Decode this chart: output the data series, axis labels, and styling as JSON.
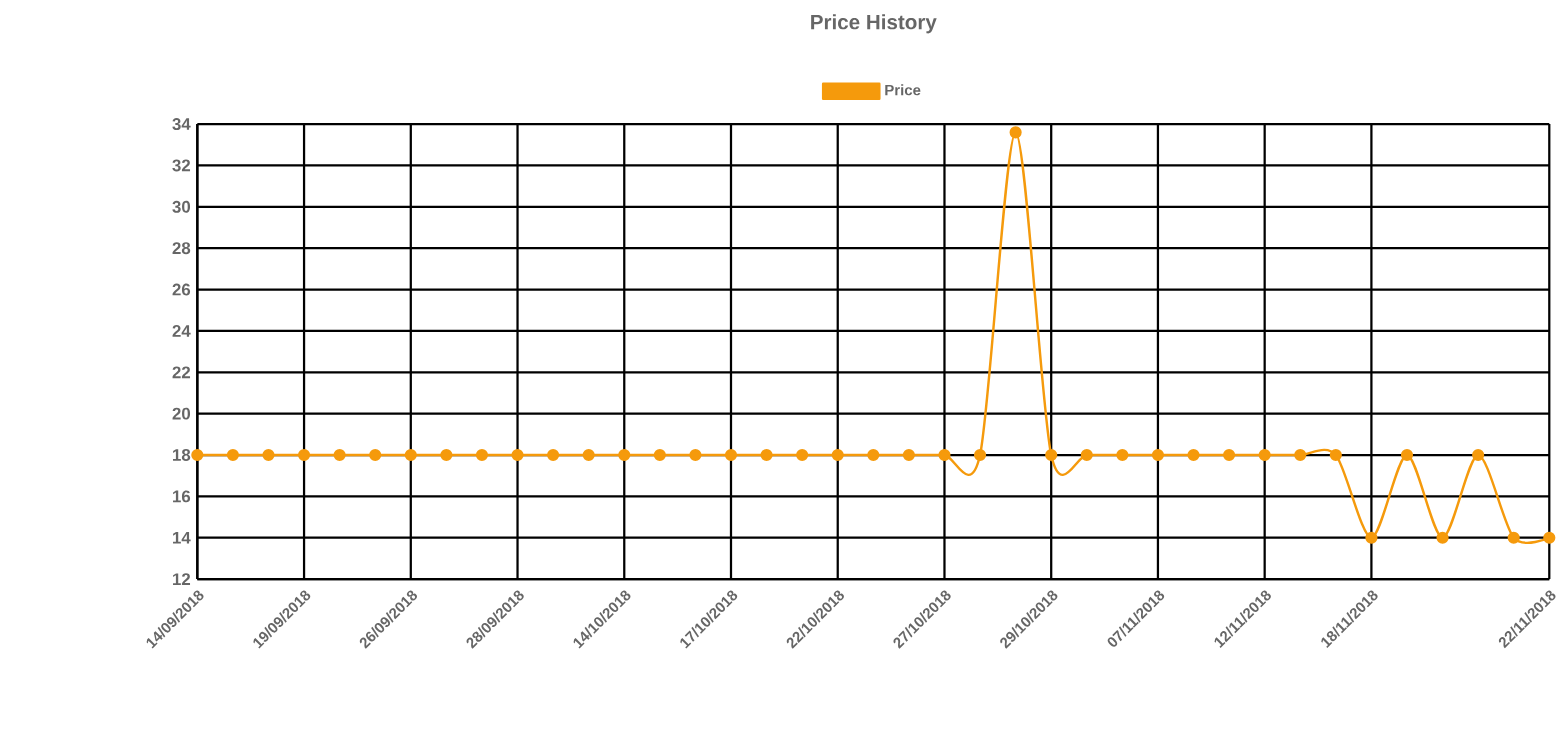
{
  "chart_data": {
    "type": "line",
    "title": "Price History",
    "categories": [
      "14/09/2018",
      null,
      null,
      "19/09/2018",
      null,
      null,
      "26/09/2018",
      null,
      null,
      "28/09/2018",
      null,
      null,
      "14/10/2018",
      null,
      null,
      "17/10/2018",
      null,
      null,
      "22/10/2018",
      null,
      null,
      "27/10/2018",
      null,
      null,
      "29/10/2018",
      null,
      null,
      "07/11/2018",
      null,
      null,
      "12/11/2018",
      null,
      null,
      "18/11/2018",
      null,
      null,
      null,
      null,
      "22/11/2018"
    ],
    "series": [
      {
        "name": "Price",
        "color": "#f59a0c",
        "values": [
          18,
          18,
          18,
          18,
          18,
          18,
          18,
          18,
          18,
          18,
          18,
          18,
          18,
          18,
          18,
          18,
          18,
          18,
          18,
          18,
          18,
          18,
          18,
          33.6,
          18,
          18,
          18,
          18,
          18,
          18,
          18,
          18,
          18,
          14,
          18,
          14,
          18,
          14,
          14
        ]
      }
    ],
    "ylim": [
      12,
      34
    ],
    "yticks": [
      12,
      14,
      16,
      18,
      20,
      22,
      24,
      26,
      28,
      30,
      32,
      34
    ],
    "grid": true,
    "legend": "top",
    "marker": "circle",
    "line_style": "solid"
  }
}
